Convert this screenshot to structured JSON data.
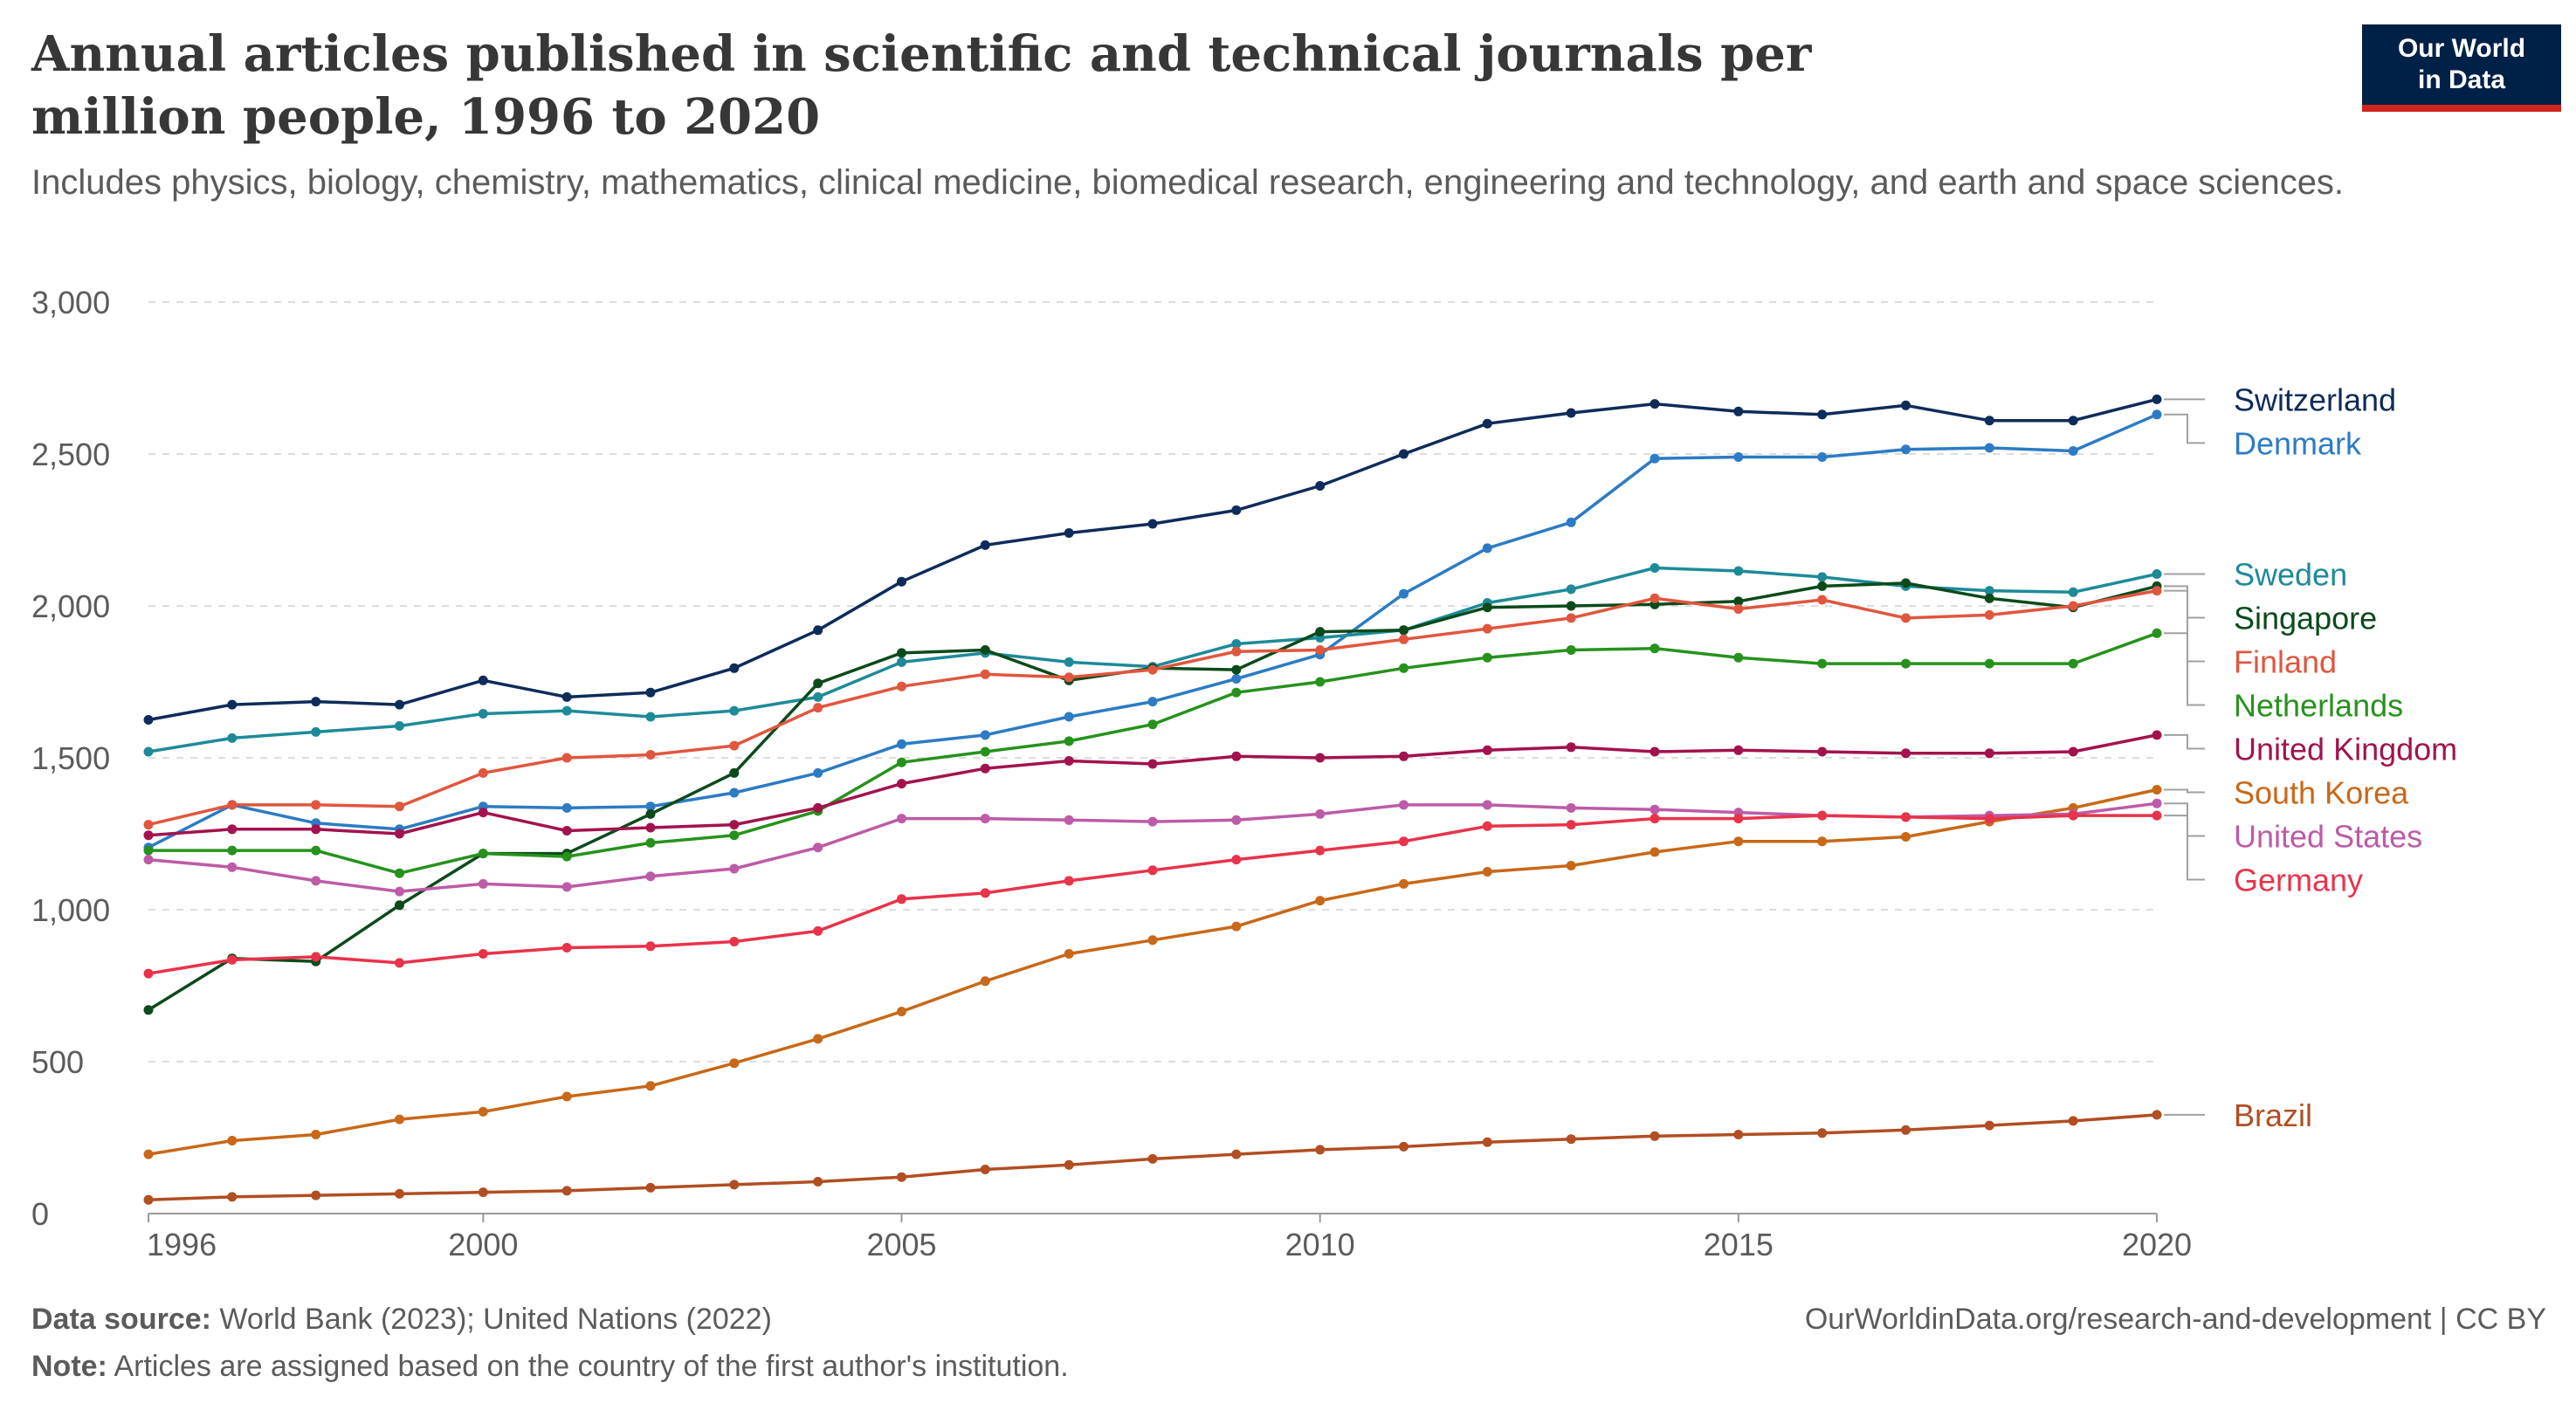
{
  "title": "Annual articles published in scientific and technical journals per million people, 1996 to 2020",
  "subtitle": "Includes physics, biology, chemistry, mathematics, clinical medicine, biomedical research, engineering and technology, and earth and space sciences.",
  "logo": {
    "line1": "Our World",
    "line2": "in Data"
  },
  "footer": {
    "source_label": "Data source:",
    "source_text": "World Bank (2023); United Nations (2022)",
    "url": "OurWorldinData.org/research-and-development | CC BY",
    "note_label": "Note:",
    "note_text": "Articles are assigned based on the country of the first author's institution."
  },
  "chart_data": {
    "type": "line",
    "x_ticks": [
      "1996",
      "2000",
      "2005",
      "2010",
      "2015",
      "2020"
    ],
    "y_ticks": [
      "0",
      "500",
      "1,000",
      "1,500",
      "2,000",
      "2,500",
      "3,000"
    ],
    "ylim": [
      0,
      3000
    ],
    "xlim": [
      1996,
      2020
    ],
    "grid": "horizontal dashed",
    "legend_placement": "right, labels at line ends",
    "x": [
      1996,
      1997,
      1998,
      1999,
      2000,
      2001,
      2002,
      2003,
      2004,
      2005,
      2006,
      2007,
      2008,
      2009,
      2010,
      2011,
      2012,
      2013,
      2014,
      2015,
      2016,
      2017,
      2018,
      2019,
      2020
    ],
    "series": [
      {
        "name": "Switzerland",
        "color": "#0f2b5a",
        "values": [
          1625,
          1675,
          1685,
          1675,
          1755,
          1700,
          1715,
          1795,
          1920,
          2080,
          2200,
          2240,
          2270,
          2315,
          2395,
          2500,
          2600,
          2635,
          2665,
          2640,
          2630,
          2660,
          2610,
          2610,
          2680
        ]
      },
      {
        "name": "Denmark",
        "color": "#2c7bc4",
        "values": [
          1205,
          1345,
          1285,
          1265,
          1340,
          1335,
          1340,
          1385,
          1450,
          1545,
          1575,
          1635,
          1685,
          1760,
          1840,
          2040,
          2190,
          2275,
          2485,
          2490,
          2490,
          2515,
          2520,
          2510,
          2630
        ]
      },
      {
        "name": "Sweden",
        "color": "#1e8a98",
        "values": [
          1520,
          1565,
          1585,
          1605,
          1645,
          1655,
          1635,
          1655,
          1700,
          1815,
          1845,
          1815,
          1800,
          1875,
          1895,
          1920,
          2010,
          2055,
          2125,
          2115,
          2095,
          2065,
          2050,
          2045,
          2105
        ]
      },
      {
        "name": "Singapore",
        "color": "#0c4a1b",
        "values": [
          670,
          840,
          830,
          1015,
          1185,
          1185,
          1315,
          1450,
          1745,
          1845,
          1855,
          1755,
          1795,
          1790,
          1915,
          1920,
          1995,
          2000,
          2005,
          2015,
          2065,
          2075,
          2025,
          1995,
          2065
        ]
      },
      {
        "name": "Finland",
        "color": "#e0563e",
        "values": [
          1280,
          1345,
          1345,
          1340,
          1450,
          1500,
          1510,
          1540,
          1665,
          1735,
          1775,
          1765,
          1790,
          1850,
          1855,
          1890,
          1925,
          1960,
          2025,
          1990,
          2020,
          1960,
          1970,
          2000,
          2050
        ]
      },
      {
        "name": "Netherlands",
        "color": "#26921c",
        "values": [
          1195,
          1195,
          1195,
          1120,
          1185,
          1175,
          1220,
          1245,
          1325,
          1485,
          1520,
          1555,
          1610,
          1715,
          1750,
          1795,
          1830,
          1855,
          1860,
          1830,
          1810,
          1810,
          1810,
          1810,
          1910
        ]
      },
      {
        "name": "United Kingdom",
        "color": "#a2134d",
        "values": [
          1245,
          1265,
          1265,
          1250,
          1320,
          1260,
          1270,
          1280,
          1335,
          1415,
          1465,
          1490,
          1480,
          1505,
          1500,
          1505,
          1525,
          1535,
          1520,
          1525,
          1520,
          1515,
          1515,
          1520,
          1575
        ]
      },
      {
        "name": "South Korea",
        "color": "#c86818",
        "values": [
          195,
          240,
          260,
          310,
          335,
          385,
          420,
          495,
          575,
          665,
          765,
          855,
          900,
          945,
          1030,
          1085,
          1125,
          1145,
          1190,
          1225,
          1225,
          1240,
          1290,
          1335,
          1395
        ]
      },
      {
        "name": "United States",
        "color": "#bd5ba6",
        "values": [
          1165,
          1140,
          1095,
          1060,
          1085,
          1075,
          1110,
          1135,
          1205,
          1300,
          1300,
          1295,
          1290,
          1295,
          1315,
          1345,
          1345,
          1335,
          1330,
          1320,
          1310,
          1305,
          1310,
          1315,
          1350
        ]
      },
      {
        "name": "Germany",
        "color": "#e8334a",
        "values": [
          790,
          835,
          845,
          825,
          855,
          875,
          880,
          895,
          930,
          1035,
          1055,
          1095,
          1130,
          1165,
          1195,
          1225,
          1275,
          1280,
          1300,
          1300,
          1310,
          1305,
          1300,
          1310,
          1310
        ]
      },
      {
        "name": "Brazil",
        "color": "#b14e22",
        "values": [
          45,
          55,
          60,
          65,
          70,
          75,
          85,
          95,
          105,
          120,
          145,
          160,
          180,
          195,
          210,
          220,
          235,
          245,
          255,
          260,
          265,
          275,
          290,
          305,
          325
        ]
      }
    ]
  }
}
